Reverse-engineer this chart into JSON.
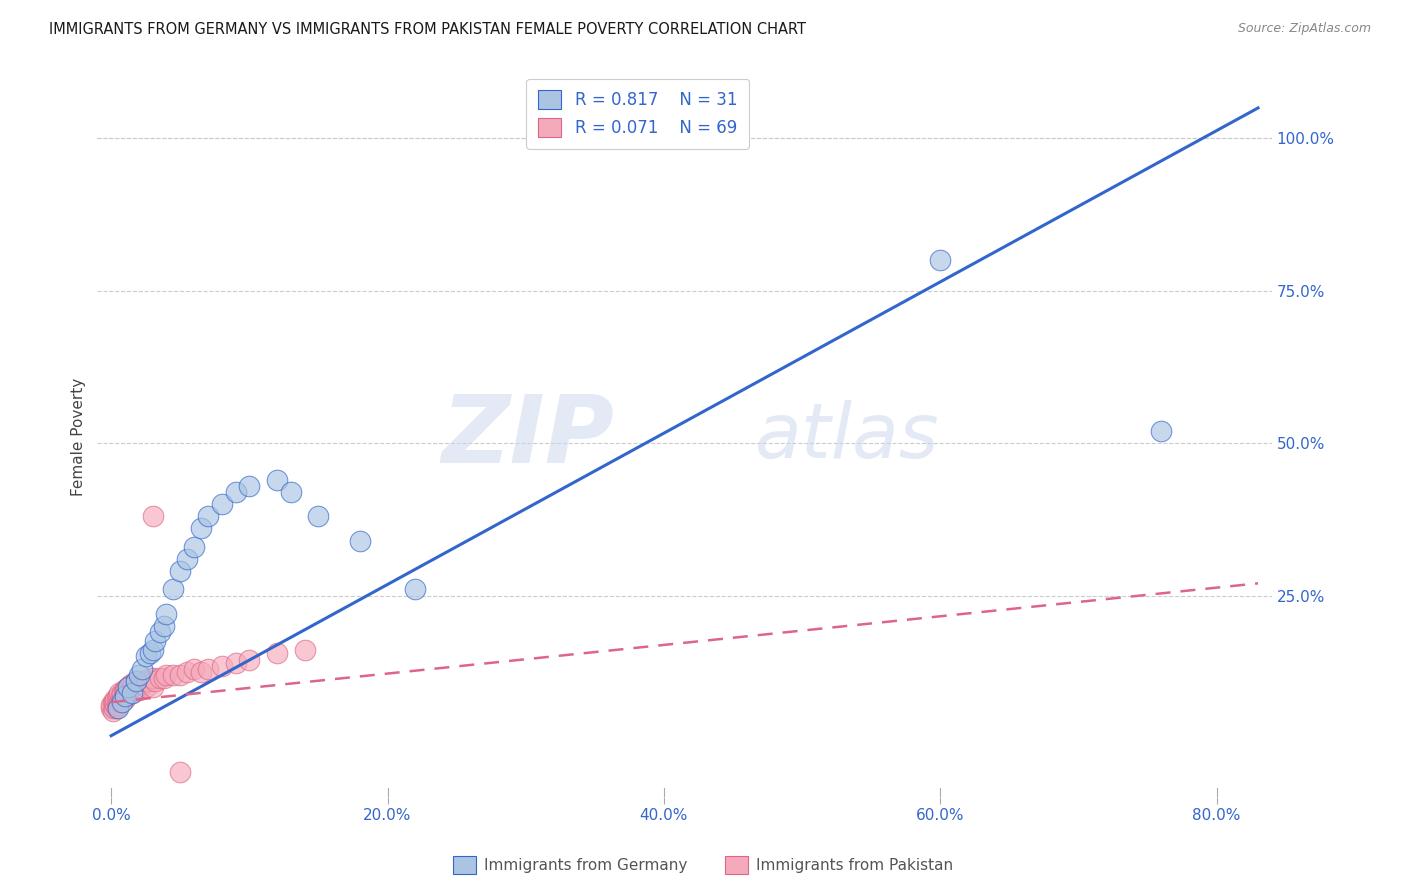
{
  "title": "IMMIGRANTS FROM GERMANY VS IMMIGRANTS FROM PAKISTAN FEMALE POVERTY CORRELATION CHART",
  "source": "Source: ZipAtlas.com",
  "ylabel": "Female Poverty",
  "ytick_labels": [
    "100.0%",
    "75.0%",
    "50.0%",
    "25.0%"
  ],
  "ytick_values": [
    1.0,
    0.75,
    0.5,
    0.25
  ],
  "xtick_labels": [
    "0.0%",
    "20.0%",
    "40.0%",
    "60.0%",
    "80.0%"
  ],
  "xtick_values": [
    0.0,
    0.2,
    0.4,
    0.6,
    0.8
  ],
  "xlim": [
    -0.01,
    0.84
  ],
  "ylim": [
    -0.08,
    1.1
  ],
  "germany_color": "#aac4e2",
  "pakistan_color": "#f5aabb",
  "germany_R": 0.817,
  "germany_N": 31,
  "pakistan_R": 0.071,
  "pakistan_N": 69,
  "germany_line_color": "#3366cc",
  "pakistan_line_color": "#dd6688",
  "watermark_zip": "ZIP",
  "watermark_atlas": "atlas",
  "legend_label_germany": "Immigrants from Germany",
  "legend_label_pakistan": "Immigrants from Pakistan",
  "germany_line_x0": 0.0,
  "germany_line_y0": 0.02,
  "germany_line_x1": 0.83,
  "germany_line_y1": 1.05,
  "pakistan_line_x0": 0.0,
  "pakistan_line_y0": 0.075,
  "pakistan_line_x1": 0.83,
  "pakistan_line_y1": 0.27,
  "germany_scatter_x": [
    0.005,
    0.008,
    0.01,
    0.012,
    0.015,
    0.018,
    0.02,
    0.022,
    0.025,
    0.028,
    0.03,
    0.032,
    0.035,
    0.038,
    0.04,
    0.045,
    0.05,
    0.055,
    0.06,
    0.065,
    0.07,
    0.08,
    0.09,
    0.1,
    0.12,
    0.13,
    0.15,
    0.18,
    0.22,
    0.6,
    0.76
  ],
  "germany_scatter_y": [
    0.065,
    0.075,
    0.085,
    0.1,
    0.09,
    0.11,
    0.12,
    0.13,
    0.15,
    0.155,
    0.16,
    0.175,
    0.19,
    0.2,
    0.22,
    0.26,
    0.29,
    0.31,
    0.33,
    0.36,
    0.38,
    0.4,
    0.42,
    0.43,
    0.44,
    0.42,
    0.38,
    0.34,
    0.26,
    0.8,
    0.52
  ],
  "pakistan_scatter_x": [
    0.0,
    0.0,
    0.001,
    0.001,
    0.002,
    0.002,
    0.003,
    0.003,
    0.004,
    0.004,
    0.005,
    0.005,
    0.006,
    0.006,
    0.007,
    0.007,
    0.008,
    0.008,
    0.009,
    0.009,
    0.01,
    0.01,
    0.011,
    0.011,
    0.012,
    0.012,
    0.013,
    0.013,
    0.014,
    0.014,
    0.015,
    0.015,
    0.016,
    0.016,
    0.017,
    0.017,
    0.018,
    0.018,
    0.019,
    0.019,
    0.02,
    0.02,
    0.021,
    0.022,
    0.023,
    0.024,
    0.025,
    0.025,
    0.026,
    0.028,
    0.03,
    0.03,
    0.032,
    0.035,
    0.038,
    0.04,
    0.045,
    0.05,
    0.055,
    0.06,
    0.065,
    0.07,
    0.08,
    0.09,
    0.1,
    0.12,
    0.14,
    0.03,
    0.05
  ],
  "pakistan_scatter_y": [
    0.065,
    0.07,
    0.06,
    0.075,
    0.065,
    0.075,
    0.07,
    0.08,
    0.065,
    0.08,
    0.07,
    0.085,
    0.075,
    0.09,
    0.075,
    0.085,
    0.08,
    0.09,
    0.085,
    0.095,
    0.08,
    0.095,
    0.085,
    0.095,
    0.09,
    0.1,
    0.09,
    0.1,
    0.095,
    0.105,
    0.09,
    0.1,
    0.095,
    0.105,
    0.095,
    0.105,
    0.1,
    0.11,
    0.1,
    0.11,
    0.095,
    0.11,
    0.1,
    0.105,
    0.105,
    0.11,
    0.1,
    0.11,
    0.11,
    0.115,
    0.1,
    0.115,
    0.11,
    0.115,
    0.115,
    0.12,
    0.12,
    0.12,
    0.125,
    0.13,
    0.125,
    0.13,
    0.135,
    0.14,
    0.145,
    0.155,
    0.16,
    0.38,
    -0.04
  ]
}
